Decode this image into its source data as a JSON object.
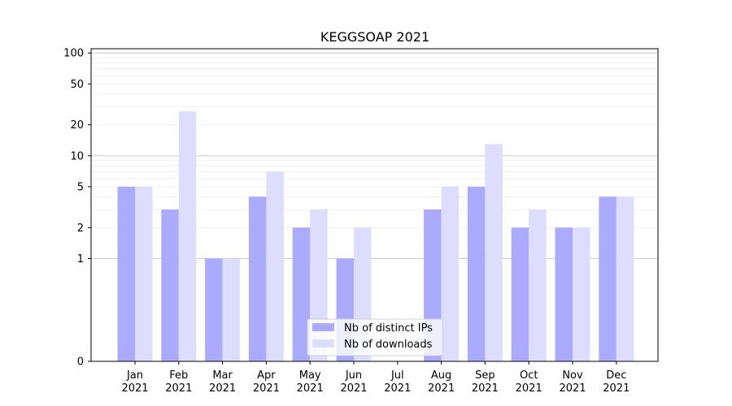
{
  "chart_data": {
    "type": "bar",
    "title": "KEGGSOAP 2021",
    "xlabel": "",
    "ylabel": "",
    "yscale": "symlog",
    "ylim": [
      0,
      110
    ],
    "yticks": [
      0,
      1,
      2,
      5,
      10,
      20,
      50,
      100
    ],
    "ytick_labels": [
      "0",
      "1",
      "2",
      "5",
      "10",
      "20",
      "50",
      "100"
    ],
    "grid": true,
    "legend_position": "bottom-center",
    "categories": [
      [
        "Jan",
        "2021"
      ],
      [
        "Feb",
        "2021"
      ],
      [
        "Mar",
        "2021"
      ],
      [
        "Apr",
        "2021"
      ],
      [
        "May",
        "2021"
      ],
      [
        "Jun",
        "2021"
      ],
      [
        "Jul",
        "2021"
      ],
      [
        "Aug",
        "2021"
      ],
      [
        "Sep",
        "2021"
      ],
      [
        "Oct",
        "2021"
      ],
      [
        "Nov",
        "2021"
      ],
      [
        "Dec",
        "2021"
      ]
    ],
    "series": [
      {
        "name": "Nb of distinct IPs",
        "color": "#aaaaff",
        "values": [
          5,
          3,
          1,
          4,
          2,
          1,
          0,
          3,
          5,
          2,
          2,
          4
        ]
      },
      {
        "name": "Nb of downloads",
        "color": "#ddddff",
        "values": [
          5,
          27,
          1,
          7,
          3,
          2,
          0,
          5,
          13,
          3,
          2,
          4
        ]
      }
    ]
  }
}
